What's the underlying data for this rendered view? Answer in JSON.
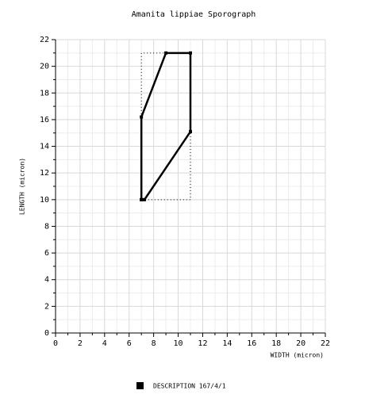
{
  "chart_data": {
    "type": "line",
    "title": "Amanita lippiae Sporograph",
    "x_label": "WIDTH (micron)",
    "y_label": "LENGTH (micron)",
    "xlim": [
      0,
      22
    ],
    "ylim": [
      0,
      22
    ],
    "xticks": [
      0,
      2,
      4,
      6,
      8,
      10,
      12,
      14,
      16,
      18,
      20,
      22
    ],
    "yticks": [
      0,
      2,
      4,
      6,
      8,
      10,
      12,
      14,
      16,
      18,
      20,
      22
    ],
    "grid": true,
    "legend": "bottom",
    "series": [
      {
        "name": "DESCRIPTION 167/4/1",
        "color": "#000000",
        "style": "solid",
        "markers": true,
        "x": [
          7,
          7,
          9,
          11,
          11,
          7.25,
          7
        ],
        "values": [
          10,
          16.2,
          21,
          21,
          15.1,
          10,
          10
        ]
      },
      {
        "color": "#000000",
        "style": "dotted",
        "markers": false,
        "x": [
          7,
          7,
          11,
          11,
          7
        ],
        "values": [
          10,
          21,
          21,
          10,
          10
        ]
      }
    ]
  }
}
